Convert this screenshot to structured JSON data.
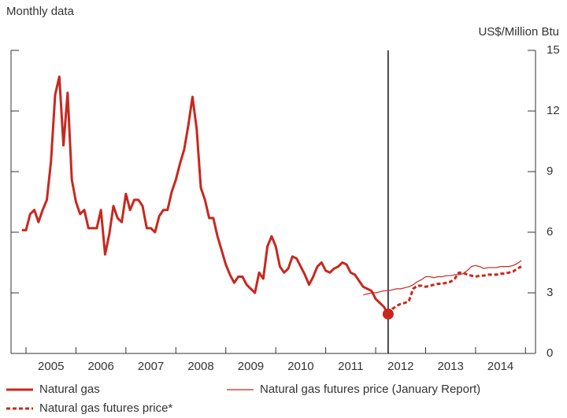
{
  "chart_data": {
    "type": "line",
    "subtitle": "Monthly data",
    "y_label": "US$/Million Btu",
    "xlim": [
      2004.7,
      2015.2
    ],
    "xticks": [
      {
        "value": 2005.5,
        "label": "2005"
      },
      {
        "value": 2006.5,
        "label": "2006"
      },
      {
        "value": 2007.5,
        "label": "2007"
      },
      {
        "value": 2008.5,
        "label": "2008"
      },
      {
        "value": 2009.5,
        "label": "2009"
      },
      {
        "value": 2010.5,
        "label": "2010"
      },
      {
        "value": 2011.5,
        "label": "2011"
      },
      {
        "value": 2012.5,
        "label": "2012"
      },
      {
        "value": 2013.5,
        "label": "2013"
      },
      {
        "value": 2014.5,
        "label": "2014"
      }
    ],
    "ylim": [
      0,
      15
    ],
    "yticks": [
      0,
      3,
      6,
      9,
      12,
      15
    ],
    "vline": 2012.25,
    "series": [
      {
        "name": "Natural gas",
        "color": "#c8281e",
        "style": "solid-thick",
        "x": [
          2004.917,
          2005.0,
          2005.083,
          2005.167,
          2005.25,
          2005.333,
          2005.417,
          2005.5,
          2005.583,
          2005.667,
          2005.75,
          2005.833,
          2005.917,
          2006.0,
          2006.083,
          2006.167,
          2006.25,
          2006.333,
          2006.417,
          2006.5,
          2006.583,
          2006.667,
          2006.75,
          2006.833,
          2006.917,
          2007.0,
          2007.083,
          2007.167,
          2007.25,
          2007.333,
          2007.417,
          2007.5,
          2007.583,
          2007.667,
          2007.75,
          2007.833,
          2007.917,
          2008.0,
          2008.083,
          2008.167,
          2008.25,
          2008.333,
          2008.417,
          2008.5,
          2008.583,
          2008.667,
          2008.75,
          2008.833,
          2008.917,
          2009.0,
          2009.083,
          2009.167,
          2009.25,
          2009.333,
          2009.417,
          2009.5,
          2009.583,
          2009.667,
          2009.75,
          2009.833,
          2009.917,
          2010.0,
          2010.083,
          2010.167,
          2010.25,
          2010.333,
          2010.417,
          2010.5,
          2010.583,
          2010.667,
          2010.75,
          2010.833,
          2010.917,
          2011.0,
          2011.083,
          2011.167,
          2011.25,
          2011.333,
          2011.417,
          2011.5,
          2011.583,
          2011.667,
          2011.75,
          2011.833,
          2011.917,
          2012.0,
          2012.083,
          2012.167,
          2012.25
        ],
        "values": [
          6.1,
          6.1,
          6.9,
          7.1,
          6.5,
          7.1,
          7.6,
          9.5,
          12.8,
          13.7,
          10.3,
          12.9,
          8.6,
          7.5,
          6.9,
          7.1,
          6.2,
          6.2,
          6.2,
          7.1,
          4.9,
          5.9,
          7.3,
          6.7,
          6.5,
          7.9,
          7.1,
          7.6,
          7.6,
          7.3,
          6.2,
          6.2,
          6.0,
          6.8,
          7.1,
          7.1,
          8.0,
          8.6,
          9.4,
          10.1,
          11.3,
          12.7,
          11.1,
          8.2,
          7.6,
          6.7,
          6.7,
          5.8,
          5.1,
          4.4,
          3.9,
          3.5,
          3.8,
          3.8,
          3.4,
          3.2,
          3.0,
          4.0,
          3.7,
          5.3,
          5.8,
          5.3,
          4.3,
          4.0,
          4.2,
          4.8,
          4.7,
          4.3,
          3.9,
          3.4,
          3.8,
          4.3,
          4.5,
          4.1,
          4.0,
          4.2,
          4.3,
          4.5,
          4.4,
          4.0,
          3.9,
          3.6,
          3.3,
          3.2,
          3.1,
          2.7,
          2.5,
          2.3,
          1.95
        ]
      },
      {
        "name": "Natural gas futures price (January Report)",
        "color": "#c8281e",
        "style": "solid-thin",
        "x": [
          2011.75,
          2011.833,
          2011.917,
          2012.0,
          2012.083,
          2012.167,
          2012.25,
          2012.333,
          2012.417,
          2012.5,
          2012.583,
          2012.667,
          2012.75,
          2012.833,
          2012.917,
          2013.0,
          2013.083,
          2013.167,
          2013.25,
          2013.333,
          2013.417,
          2013.5,
          2013.583,
          2013.667,
          2013.75,
          2013.833,
          2013.917,
          2014.0,
          2014.083,
          2014.167,
          2014.25,
          2014.333,
          2014.417,
          2014.5,
          2014.583,
          2014.667,
          2014.75,
          2014.833,
          2014.917
        ],
        "values": [
          2.9,
          2.95,
          3.0,
          3.0,
          3.05,
          3.1,
          3.1,
          3.15,
          3.2,
          3.2,
          3.25,
          3.3,
          3.4,
          3.55,
          3.65,
          3.8,
          3.8,
          3.75,
          3.8,
          3.8,
          3.85,
          3.85,
          3.9,
          3.9,
          3.95,
          4.1,
          4.3,
          4.35,
          4.3,
          4.2,
          4.25,
          4.25,
          4.25,
          4.3,
          4.3,
          4.3,
          4.35,
          4.45,
          4.6
        ]
      },
      {
        "name": "Natural gas futures price*",
        "color": "#c8281e",
        "style": "dashed",
        "x": [
          2012.25,
          2012.333,
          2012.417,
          2012.5,
          2012.583,
          2012.667,
          2012.75,
          2012.833,
          2012.917,
          2013.0,
          2013.083,
          2013.167,
          2013.25,
          2013.333,
          2013.417,
          2013.5,
          2013.583,
          2013.667,
          2013.75,
          2013.833,
          2013.917,
          2014.0,
          2014.083,
          2014.167,
          2014.25,
          2014.333,
          2014.417,
          2014.5,
          2014.583,
          2014.667,
          2014.75,
          2014.833,
          2014.917
        ],
        "values": [
          1.95,
          2.2,
          2.35,
          2.45,
          2.5,
          2.6,
          3.2,
          3.35,
          3.35,
          3.3,
          3.35,
          3.4,
          3.45,
          3.45,
          3.5,
          3.55,
          3.7,
          4.0,
          4.0,
          3.9,
          3.85,
          3.8,
          3.85,
          3.85,
          3.9,
          3.9,
          3.9,
          3.95,
          3.95,
          4.0,
          4.05,
          4.2,
          4.3
        ]
      }
    ]
  }
}
